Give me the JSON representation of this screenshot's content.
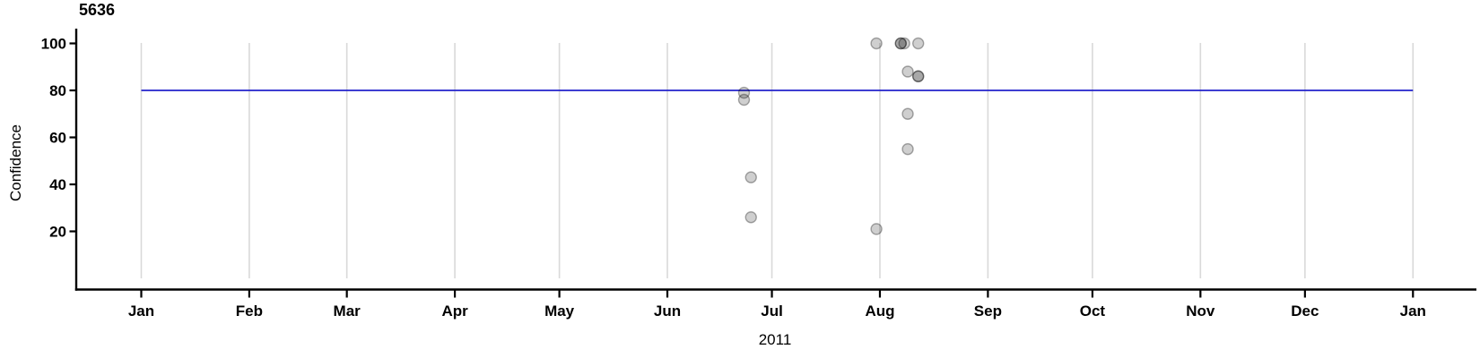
{
  "figure": {
    "title": "5636",
    "x_axis_label": "2011",
    "y_axis_label": "Confidence"
  },
  "chart_data": {
    "type": "scatter",
    "title": "5636",
    "xlabel": "2011",
    "ylabel": "Confidence",
    "x_axis_type": "time, Jan 2011 through Jan 2012, gridline at the 1st of each month",
    "x_tick_labels": [
      "Jan",
      "Feb",
      "Mar",
      "Apr",
      "May",
      "Jun",
      "Jul",
      "Aug",
      "Sep",
      "Oct",
      "Nov",
      "Dec",
      "Jan"
    ],
    "y_ticks": [
      20,
      40,
      60,
      80,
      100
    ],
    "ylim": [
      0,
      105
    ],
    "grid": "vertical monthly gridlines only",
    "legend": "none",
    "reference_line": {
      "y": 80,
      "color": "#2222cc",
      "x_start_day": 0,
      "x_end_day": 365,
      "description": "horizontal blue line at confidence 80 spanning Jan 1 2011 to Jan 1 2012"
    },
    "points": [
      {
        "date": "2011-06-23",
        "day": 173,
        "confidence": 79,
        "count": 1
      },
      {
        "date": "2011-06-23",
        "day": 173,
        "confidence": 76,
        "count": 1
      },
      {
        "date": "2011-06-25",
        "day": 175,
        "confidence": 43,
        "count": 1
      },
      {
        "date": "2011-06-25",
        "day": 175,
        "confidence": 26,
        "count": 1
      },
      {
        "date": "2011-07-31",
        "day": 211,
        "confidence": 100,
        "count": 1
      },
      {
        "date": "2011-07-31",
        "day": 211,
        "confidence": 21,
        "count": 1
      },
      {
        "date": "2011-08-07",
        "day": 218,
        "confidence": 100,
        "count": 2
      },
      {
        "date": "2011-08-08",
        "day": 219,
        "confidence": 100,
        "count": 1
      },
      {
        "date": "2011-08-09",
        "day": 220,
        "confidence": 88,
        "count": 1
      },
      {
        "date": "2011-08-09",
        "day": 220,
        "confidence": 70,
        "count": 1
      },
      {
        "date": "2011-08-09",
        "day": 220,
        "confidence": 55,
        "count": 1
      },
      {
        "date": "2011-08-12",
        "day": 223,
        "confidence": 100,
        "count": 1
      },
      {
        "date": "2011-08-12",
        "day": 223,
        "confidence": 86,
        "count": 2
      }
    ],
    "point_style": {
      "radius": 6,
      "fill": "rgba(0,0,0,0.19)",
      "stroke": "rgba(0,0,0,0.32)",
      "note": "semi-transparent gray circles; count>1 means stacked duplicates rendering darker"
    },
    "colors": {
      "axis": "#000000",
      "grid": "#d9d9d9",
      "reference_line": "#2222cc",
      "background": "#ffffff",
      "text": "#000000"
    }
  }
}
